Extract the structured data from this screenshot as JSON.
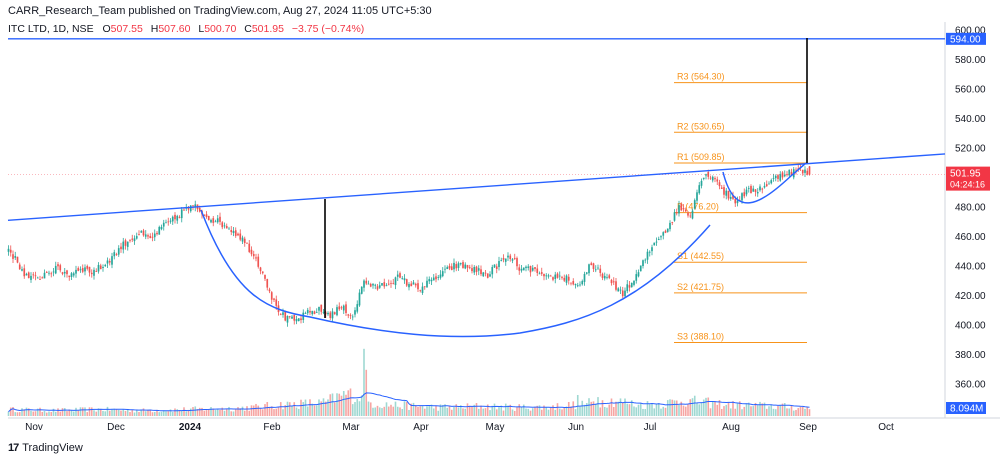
{
  "publisher": "CARR_Research_Team published on TradingView.com, Aug 27, 2024 11:05 UTC+5:30",
  "legend": {
    "symbol": "ITC LTD, 1D, NSE",
    "open_label": "O",
    "open": "507.55",
    "high_label": "H",
    "high": "507.60",
    "low_label": "L",
    "low": "500.70",
    "close_label": "C",
    "close": "501.95",
    "change": "−3.75 (−0.74%)"
  },
  "footer": {
    "brand": "TradingView"
  },
  "colors": {
    "up": "#26a69a",
    "down": "#ef5350",
    "trend": "#2962ff",
    "pivot": "#f7931a",
    "axis_text": "#131722"
  },
  "chart_data": {
    "type": "candlestick",
    "y_axis": {
      "range": [
        343,
        603
      ],
      "ticks": [
        "600.00",
        "580.00",
        "560.00",
        "540.00",
        "520.00",
        "500.00",
        "480.00",
        "460.00",
        "440.00",
        "420.00",
        "400.00",
        "380.00",
        "360.00"
      ]
    },
    "x_axis": {
      "ticks": [
        "Nov",
        "Dec",
        "2024",
        "Feb",
        "Mar",
        "Apr",
        "May",
        "Jun",
        "Jul",
        "Aug",
        "Sep",
        "Oct"
      ]
    },
    "price_labels": {
      "target": "594.00",
      "last": "501.95",
      "countdown": "04:24:16",
      "volume": "8.094M"
    },
    "pivots": [
      {
        "label": "R3 (564.30)",
        "value": 564.3
      },
      {
        "label": "R2 (530.65)",
        "value": 530.65
      },
      {
        "label": "R1 (509.85)",
        "value": 509.85
      },
      {
        "label": "P (476.20)",
        "value": 476.2
      },
      {
        "label": "S1 (442.55)",
        "value": 442.55
      },
      {
        "label": "S2 (421.75)",
        "value": 421.75
      },
      {
        "label": "S3 (388.10)",
        "value": 388.1
      }
    ],
    "trendline": {
      "start": 471,
      "end": 516
    },
    "target_line": 594.0,
    "price_anchors": [
      [
        0,
        452
      ],
      [
        4,
        442
      ],
      [
        8,
        433
      ],
      [
        13,
        431
      ],
      [
        17,
        436
      ],
      [
        22,
        438
      ],
      [
        27,
        434
      ],
      [
        32,
        439
      ],
      [
        37,
        436
      ],
      [
        42,
        440
      ],
      [
        47,
        448
      ],
      [
        52,
        456
      ],
      [
        58,
        462
      ],
      [
        63,
        458
      ],
      [
        68,
        466
      ],
      [
        73,
        471
      ],
      [
        78,
        478
      ],
      [
        83,
        480
      ],
      [
        88,
        474
      ],
      [
        93,
        470
      ],
      [
        98,
        466
      ],
      [
        103,
        460
      ],
      [
        108,
        450
      ],
      [
        113,
        436
      ],
      [
        118,
        415
      ],
      [
        123,
        404
      ],
      [
        128,
        403
      ],
      [
        133,
        408
      ],
      [
        138,
        410
      ],
      [
        143,
        407
      ],
      [
        148,
        412
      ],
      [
        153,
        406
      ],
      [
        158,
        430
      ],
      [
        163,
        425
      ],
      [
        168,
        428
      ],
      [
        173,
        432
      ],
      [
        178,
        428
      ],
      [
        183,
        425
      ],
      [
        188,
        430
      ],
      [
        193,
        435
      ],
      [
        198,
        440
      ],
      [
        203,
        440
      ],
      [
        208,
        437
      ],
      [
        213,
        434
      ],
      [
        218,
        442
      ],
      [
        223,
        446
      ],
      [
        228,
        437
      ],
      [
        233,
        438
      ],
      [
        238,
        431
      ],
      [
        243,
        433
      ],
      [
        248,
        432
      ],
      [
        253,
        426
      ],
      [
        258,
        439
      ],
      [
        263,
        436
      ],
      [
        268,
        428
      ],
      [
        273,
        422
      ],
      [
        278,
        430
      ],
      [
        283,
        445
      ],
      [
        288,
        458
      ],
      [
        293,
        466
      ],
      [
        298,
        480
      ],
      [
        303,
        475
      ],
      [
        308,
        500
      ],
      [
        313,
        502
      ],
      [
        318,
        490
      ],
      [
        323,
        484
      ],
      [
        328,
        490
      ],
      [
        333,
        492
      ],
      [
        338,
        496
      ],
      [
        343,
        502
      ],
      [
        348,
        504
      ],
      [
        352,
        505
      ],
      [
        356,
        502
      ]
    ],
    "volume_anchors": [
      [
        0,
        3
      ],
      [
        20,
        2.5
      ],
      [
        40,
        3
      ],
      [
        60,
        2.5
      ],
      [
        80,
        3
      ],
      [
        100,
        3.5
      ],
      [
        110,
        4
      ],
      [
        120,
        5
      ],
      [
        130,
        5.5
      ],
      [
        140,
        6
      ],
      [
        150,
        10
      ],
      [
        155,
        9
      ],
      [
        160,
        6
      ],
      [
        170,
        5
      ],
      [
        180,
        4.5
      ],
      [
        190,
        4
      ],
      [
        200,
        4
      ],
      [
        210,
        4.5
      ],
      [
        220,
        4
      ],
      [
        240,
        4
      ],
      [
        260,
        6
      ],
      [
        270,
        7
      ],
      [
        280,
        5
      ],
      [
        290,
        5.5
      ],
      [
        300,
        7
      ],
      [
        310,
        6
      ],
      [
        320,
        5
      ],
      [
        340,
        4.5
      ],
      [
        356,
        3.5
      ]
    ],
    "spikes": {
      "158": 32,
      "159": 22,
      "253": 10,
      "262": 9,
      "303": 8
    }
  }
}
